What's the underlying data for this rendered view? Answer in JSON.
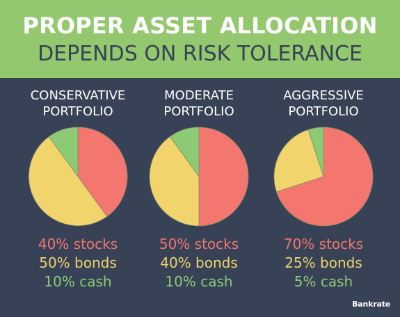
{
  "header": {
    "line1": "PROPER ASSET ALLOCATION",
    "line2": "DEPENDS ON RISK TOLERANCE"
  },
  "brand": "Bankrate",
  "colors": {
    "stocks": "#f3766f",
    "bonds": "#f1d46b",
    "cash": "#8ccb73",
    "background": "#374257",
    "banner": "#93c86e"
  },
  "chart_data": [
    {
      "type": "pie",
      "title": [
        "CONSERVATIVE",
        "PORTFOLIO"
      ],
      "categories": [
        "stocks",
        "bonds",
        "cash"
      ],
      "values": [
        40,
        50,
        10
      ],
      "labels": [
        "40% stocks",
        "50% bonds",
        "10% cash"
      ]
    },
    {
      "type": "pie",
      "title": [
        "MODERATE",
        "PORTFOLIO"
      ],
      "categories": [
        "stocks",
        "bonds",
        "cash"
      ],
      "values": [
        50,
        40,
        10
      ],
      "labels": [
        "50% stocks",
        "40% bonds",
        "10% cash"
      ]
    },
    {
      "type": "pie",
      "title": [
        "AGGRESSIVE",
        "PORTFOLIO"
      ],
      "categories": [
        "stocks",
        "bonds",
        "cash"
      ],
      "values": [
        70,
        25,
        5
      ],
      "labels": [
        "70% stocks",
        "25% bonds",
        "5% cash"
      ]
    }
  ]
}
